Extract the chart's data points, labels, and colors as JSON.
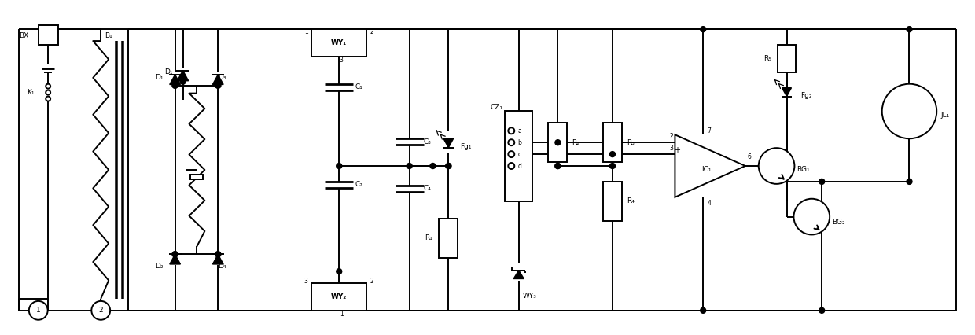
{
  "fig_width": 12.4,
  "fig_height": 4.26,
  "dpi": 100,
  "bg_color": "#ffffff",
  "line_color": "#000000",
  "lw": 1.4,
  "xlim": [
    0,
    124
  ],
  "ylim": [
    0,
    42.6
  ]
}
